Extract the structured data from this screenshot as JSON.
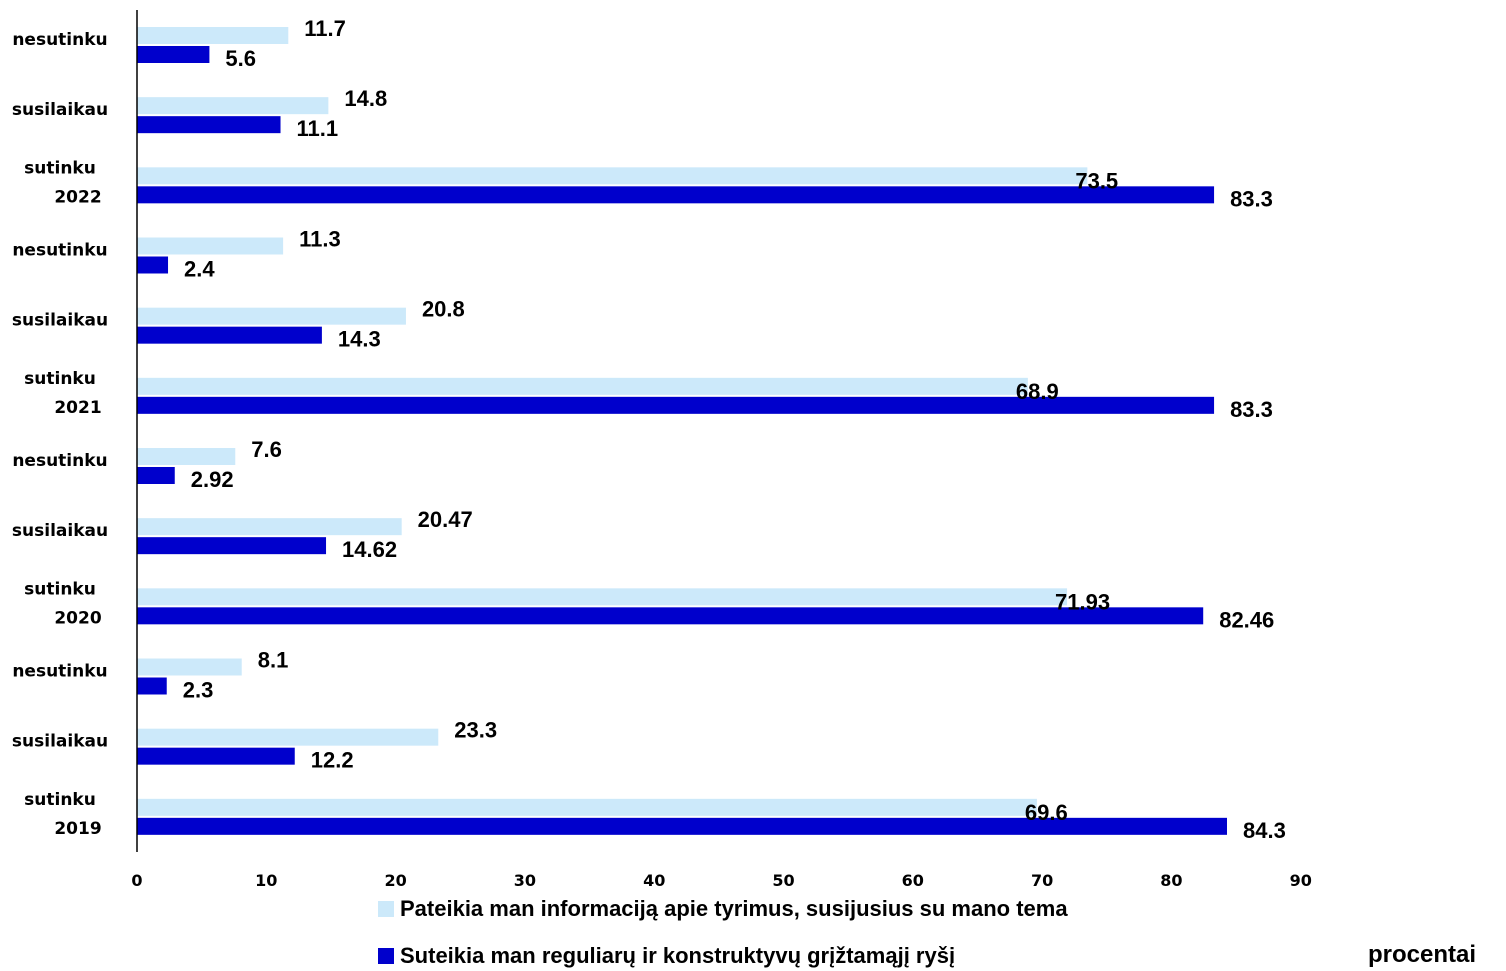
{
  "chart_data": {
    "type": "bar",
    "orientation": "horizontal",
    "title": "",
    "xlabel": "procentai",
    "ylabel": "",
    "xlim": [
      0,
      90
    ],
    "x_ticks": [
      "0",
      "10",
      "20",
      "30",
      "40",
      "50",
      "60",
      "70",
      "80",
      "90"
    ],
    "grid": false,
    "legend_position": "bottom",
    "colors": {
      "series_1": "#cce9fa",
      "series_2": "#0000cc"
    },
    "categories": [
      "nesutinku",
      "susilaikau",
      "sutinku",
      "nesutinku",
      "susilaikau",
      "sutinku",
      "nesutinku",
      "susilaikau",
      "sutinku",
      "nesutinku",
      "susilaikau",
      "sutinku"
    ],
    "groups": [
      "2022",
      "2021",
      "2020",
      "2019"
    ],
    "series": [
      {
        "name": "Pateikia man informaciją apie tyrimus, susijusius su mano tema",
        "values": [
          11.7,
          14.8,
          73.5,
          11.3,
          20.8,
          68.9,
          7.6,
          20.47,
          71.93,
          8.1,
          23.3,
          69.6
        ],
        "labels": [
          "11.7",
          "14.8",
          "73.5",
          "11.3",
          "20.8",
          "68.9",
          "7.6",
          "20.47",
          "71.93",
          "8.1",
          "23.3",
          "69.6"
        ]
      },
      {
        "name": "Suteikia man reguliarų ir konstruktyvų grįžtamąjį ryšį",
        "values": [
          5.6,
          11.1,
          83.3,
          2.4,
          14.3,
          83.3,
          2.92,
          14.62,
          82.46,
          2.3,
          12.2,
          84.3
        ],
        "labels": [
          "5.6",
          "11.1",
          "83.3",
          "2.4",
          "14.3",
          "83.3",
          "2.92",
          "14.62",
          "82.46",
          "2.3",
          "12.2",
          "84.3"
        ]
      }
    ]
  },
  "legend": {
    "series_1": "Pateikia man informaciją apie tyrimus, susijusius su mano tema",
    "series_2": "Suteikia man reguliarų ir konstruktyvų grįžtamąjį ryšį"
  },
  "unit_label": "procentai"
}
